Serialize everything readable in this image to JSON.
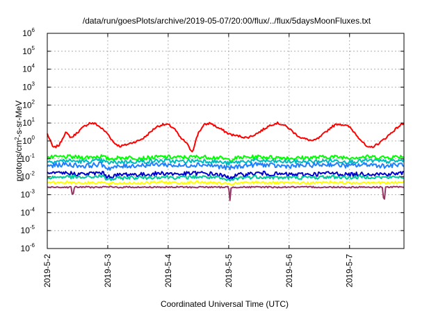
{
  "chart_data": {
    "type": "line",
    "title": "/data/run/goesPlots/archive/2019-05-07/20:00/flux/../flux/5daysMoonFluxes.txt",
    "xlabel": "Coordinated Universal Time (UTC)",
    "ylabel": "protons/cm2-s-sr-MeV",
    "ylabel_base": "protons/cm",
    "ylabel_sup": "2",
    "ylabel_rest": "-s-sr-MeV",
    "yscale": "log",
    "ylim": [
      1e-06,
      1000000.0
    ],
    "xlim": [
      0,
      5.9
    ],
    "grid": true,
    "x_ticks": [
      {
        "x": 0,
        "label": "2019-5-2"
      },
      {
        "x": 1,
        "label": "2019-5-3"
      },
      {
        "x": 2,
        "label": "2019-5-4"
      },
      {
        "x": 3,
        "label": "2019-5-5"
      },
      {
        "x": 4,
        "label": "2019-5-6"
      },
      {
        "x": 5,
        "label": "2019-5-7"
      }
    ],
    "y_ticks": [
      {
        "exp": -6,
        "base": "10",
        "sup": "-6"
      },
      {
        "exp": -5,
        "base": "10",
        "sup": "-5"
      },
      {
        "exp": -4,
        "base": "10",
        "sup": "-4"
      },
      {
        "exp": -3,
        "base": "10",
        "sup": "-3"
      },
      {
        "exp": -2,
        "base": "10",
        "sup": "-2"
      },
      {
        "exp": -1,
        "base": "10",
        "sup": "-1"
      },
      {
        "exp": 0,
        "base": "10",
        "sup": "0"
      },
      {
        "exp": 1,
        "base": "10",
        "sup": "1"
      },
      {
        "exp": 2,
        "base": "10",
        "sup": "2"
      },
      {
        "exp": 3,
        "base": "10",
        "sup": "3"
      },
      {
        "exp": 4,
        "base": "10",
        "sup": "4"
      },
      {
        "exp": 5,
        "base": "10",
        "sup": "5"
      },
      {
        "exp": 6,
        "base": "10",
        "sup": "6"
      }
    ],
    "series": [
      {
        "color": "#ff0000",
        "noise": 0.06,
        "x": [
          0,
          0.05,
          0.1,
          0.2,
          0.3,
          0.4,
          0.5,
          0.6,
          0.7,
          0.8,
          0.9,
          1.0,
          1.1,
          1.2,
          1.3,
          1.4,
          1.5,
          1.6,
          1.7,
          1.8,
          1.9,
          2.0,
          2.1,
          2.2,
          2.3,
          2.35,
          2.4,
          2.5,
          2.6,
          2.7,
          2.8,
          2.9,
          3.0,
          3.1,
          3.2,
          3.3,
          3.4,
          3.5,
          3.6,
          3.7,
          3.8,
          3.9,
          4.0,
          4.1,
          4.2,
          4.3,
          4.4,
          4.5,
          4.6,
          4.7,
          4.8,
          4.9,
          5.0,
          5.1,
          5.2,
          5.3,
          5.4,
          5.5,
          5.6,
          5.7,
          5.8,
          5.9
        ],
        "y": [
          2.5,
          1.0,
          0.4,
          0.6,
          3,
          1.5,
          3,
          6,
          10,
          9,
          5,
          2.5,
          0.8,
          0.5,
          0.6,
          0.8,
          1.0,
          1.5,
          3,
          6,
          8,
          8,
          5,
          1.5,
          0.8,
          0.4,
          0.25,
          3,
          8,
          10,
          6,
          4,
          2.5,
          2,
          1.8,
          1.5,
          2,
          3,
          5,
          8,
          10,
          8,
          5,
          2.5,
          1.5,
          1.2,
          1.0,
          1.5,
          3,
          6,
          9,
          8,
          6,
          2.5,
          1.0,
          0.4,
          0.5,
          0.8,
          1.5,
          3,
          6,
          10
        ]
      },
      {
        "color": "#00ff00",
        "noise": 0.11,
        "x": [
          0,
          0.3,
          0.6,
          0.9,
          1.0,
          1.3,
          1.6,
          1.9,
          2.2,
          2.5,
          2.8,
          3.0,
          3.2,
          3.5,
          3.8,
          4.1,
          4.4,
          4.7,
          5.0,
          5.3,
          5.6,
          5.9
        ],
        "y": [
          0.12,
          0.13,
          0.12,
          0.14,
          0.1,
          0.12,
          0.11,
          0.13,
          0.12,
          0.13,
          0.12,
          0.09,
          0.12,
          0.13,
          0.12,
          0.11,
          0.12,
          0.13,
          0.12,
          0.13,
          0.12,
          0.14
        ]
      },
      {
        "color": "#00bbbb",
        "noise": 0.11,
        "x": [
          0,
          0.3,
          0.6,
          0.9,
          1.0,
          1.3,
          1.6,
          1.9,
          2.2,
          2.5,
          2.8,
          3.0,
          3.2,
          3.5,
          3.8,
          4.1,
          4.4,
          4.7,
          5.0,
          5.3,
          5.6,
          5.9
        ],
        "y": [
          0.07,
          0.08,
          0.07,
          0.08,
          0.06,
          0.07,
          0.07,
          0.08,
          0.07,
          0.08,
          0.07,
          0.055,
          0.07,
          0.08,
          0.07,
          0.07,
          0.07,
          0.08,
          0.07,
          0.08,
          0.07,
          0.08
        ]
      },
      {
        "color": "#1e7fff",
        "noise": 0.13,
        "x": [
          0,
          0.3,
          0.6,
          0.9,
          1.0,
          1.3,
          1.6,
          1.9,
          2.2,
          2.5,
          2.8,
          3.0,
          3.2,
          3.5,
          3.8,
          4.1,
          4.4,
          4.7,
          5.0,
          5.3,
          5.6,
          5.9
        ],
        "y": [
          0.04,
          0.05,
          0.04,
          0.05,
          0.03,
          0.04,
          0.045,
          0.05,
          0.04,
          0.05,
          0.04,
          0.03,
          0.04,
          0.05,
          0.04,
          0.04,
          0.045,
          0.05,
          0.04,
          0.05,
          0.04,
          0.05
        ]
      },
      {
        "color": "#0000cc",
        "noise": 0.12,
        "x": [
          0,
          0.3,
          0.6,
          0.9,
          1.0,
          1.3,
          1.6,
          1.9,
          2.2,
          2.5,
          2.8,
          3.0,
          3.2,
          3.5,
          3.8,
          4.1,
          4.4,
          4.7,
          5.0,
          5.3,
          5.6,
          5.9
        ],
        "y": [
          0.014,
          0.016,
          0.014,
          0.017,
          0.01,
          0.014,
          0.013,
          0.016,
          0.014,
          0.016,
          0.014,
          0.009,
          0.013,
          0.016,
          0.014,
          0.013,
          0.014,
          0.016,
          0.013,
          0.015,
          0.014,
          0.016
        ]
      },
      {
        "color": "#00cc99",
        "noise": 0.1,
        "x": [
          0,
          0.3,
          0.6,
          0.9,
          1.0,
          1.3,
          1.6,
          1.9,
          2.2,
          2.5,
          2.8,
          3.0,
          3.2,
          3.5,
          3.8,
          4.1,
          4.4,
          4.7,
          5.0,
          5.3,
          5.6,
          5.9
        ],
        "y": [
          0.009,
          0.01,
          0.009,
          0.011,
          0.007,
          0.009,
          0.009,
          0.01,
          0.009,
          0.01,
          0.009,
          0.006,
          0.009,
          0.01,
          0.009,
          0.009,
          0.009,
          0.01,
          0.009,
          0.01,
          0.009,
          0.01
        ]
      },
      {
        "color": "#ffff00",
        "noise": 0.07,
        "x": [
          0,
          0.3,
          0.6,
          0.9,
          1.0,
          1.3,
          1.6,
          1.9,
          2.2,
          2.5,
          2.8,
          3.0,
          3.2,
          3.5,
          3.8,
          4.1,
          4.4,
          4.7,
          5.0,
          5.3,
          5.6,
          5.9
        ],
        "y": [
          0.0045,
          0.005,
          0.0045,
          0.005,
          0.004,
          0.0045,
          0.0045,
          0.005,
          0.0045,
          0.005,
          0.0045,
          0.0038,
          0.0045,
          0.005,
          0.0045,
          0.0045,
          0.0045,
          0.005,
          0.0045,
          0.005,
          0.0045,
          0.005
        ]
      },
      {
        "color": "#993366",
        "noise": 0.04,
        "x": [
          0,
          0.2,
          0.4,
          0.42,
          0.44,
          0.6,
          0.8,
          1.0,
          1.2,
          1.4,
          1.6,
          1.8,
          2.0,
          2.2,
          2.4,
          2.6,
          2.8,
          3.0,
          3.02,
          3.04,
          3.2,
          3.4,
          3.6,
          3.8,
          4.0,
          4.2,
          4.4,
          4.6,
          4.8,
          5.0,
          5.2,
          5.4,
          5.55,
          5.57,
          5.59,
          5.7,
          5.9
        ],
        "y": [
          0.0026,
          0.0027,
          0.0026,
          0.0006,
          0.0026,
          0.0027,
          0.0026,
          0.0027,
          0.0026,
          0.0027,
          0.0026,
          0.0027,
          0.0026,
          0.0027,
          0.0026,
          0.0027,
          0.0026,
          0.0027,
          0.0004,
          0.0026,
          0.0027,
          0.0026,
          0.0027,
          0.0026,
          0.0027,
          0.0026,
          0.0027,
          0.0026,
          0.0027,
          0.0026,
          0.0027,
          0.0026,
          0.0027,
          0.0002,
          0.0026,
          0.0027,
          0.0026
        ]
      }
    ]
  }
}
